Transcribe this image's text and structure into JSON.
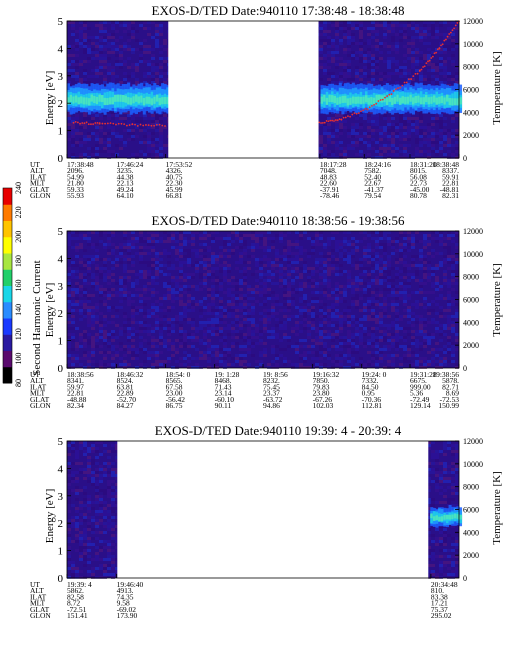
{
  "chart_data": [
    {
      "type": "heatmap",
      "title": "EXOS-D/TED   Date:940110  17:38:48 - 18:38:48",
      "ylabel": "Energy [eV]",
      "y2label": "Temperature [K]",
      "ylim": [
        0,
        5
      ],
      "y2lim": [
        0,
        12000
      ],
      "yticks": [
        "0",
        "1",
        "2",
        "3",
        "4",
        "5"
      ],
      "y2ticks": [
        "0",
        "2000",
        "4000",
        "6000",
        "8000",
        "10000",
        "12000"
      ],
      "xlim": [
        0,
        60
      ],
      "gaps": [
        [
          15.5,
          38.5
        ]
      ],
      "band": {
        "center_eV": 2.1,
        "spread_eV": 0.45
      },
      "temperature_trace": [
        [
          1,
          3100
        ],
        [
          5,
          3000
        ],
        [
          10,
          2900
        ],
        [
          15,
          2850
        ],
        [
          38.6,
          3100
        ],
        [
          42,
          3400
        ],
        [
          46,
          4300
        ],
        [
          50,
          5800
        ],
        [
          54,
          7600
        ],
        [
          57,
          9600
        ],
        [
          60,
          12000
        ]
      ],
      "eph_labels": [
        "UT",
        "ALT",
        "ILAT",
        "MLT",
        "GLAT",
        "GLON"
      ],
      "eph_columns": [
        {
          "t": 0,
          "values": [
            "17:38:48",
            "2096.",
            "54.99",
            "21.80",
            "59.33",
            "55.93"
          ]
        },
        {
          "t": 7.6,
          "values": [
            "17:46:24",
            "3235.",
            "44.38",
            "22.13",
            "49.24",
            "64.10"
          ]
        },
        {
          "t": 15.1,
          "values": [
            "17:53:52",
            "4326.",
            "40.75",
            "22.30",
            "45.99",
            "66.81"
          ]
        },
        {
          "t": 38.7,
          "values": [
            "18:17:28",
            "7048.",
            "48.83",
            "22.60",
            "-37.91",
            "-78.46"
          ]
        },
        {
          "t": 45.5,
          "values": [
            "18:24:16",
            "7582.",
            "52.40",
            "22.67",
            "-41.37",
            "79.54"
          ]
        },
        {
          "t": 52.5,
          "values": [
            "18:31:20",
            "8015.",
            "56.08",
            "22.73",
            "-45.00",
            "80.78"
          ]
        },
        {
          "t": 60,
          "values": [
            "18:38:48",
            "8337.",
            "59.91",
            "22.81",
            "-48.81",
            "82.31"
          ]
        }
      ]
    },
    {
      "type": "heatmap",
      "title": "EXOS-D/TED   Date:940110  18:38:56 - 19:38:56",
      "ylabel": "Energy [eV]",
      "y2label": "Temperature [K]",
      "ylim": [
        0,
        5
      ],
      "y2lim": [
        0,
        12000
      ],
      "yticks": [
        "0",
        "1",
        "2",
        "3",
        "4",
        "5"
      ],
      "y2ticks": [
        "0",
        "2000",
        "4000",
        "6000",
        "8000",
        "10000",
        "12000"
      ],
      "xlim": [
        0,
        60
      ],
      "gaps": [],
      "band": null,
      "temperature_trace": [],
      "eph_labels": [
        "UT",
        "ALT",
        "ILAT",
        "MLT",
        "GLAT",
        "GLON"
      ],
      "eph_columns": [
        {
          "t": 0,
          "values": [
            "18:38:56",
            "8341.",
            "59.97",
            "22.81",
            "-48.88",
            "82.34"
          ]
        },
        {
          "t": 7.6,
          "values": [
            "18:46:32",
            "8524.",
            "63.81",
            "22.89",
            "-52.70",
            "84.27"
          ]
        },
        {
          "t": 15.1,
          "values": [
            "18:54: 0",
            "8565.",
            "67.58",
            "23.00",
            "-56.42",
            "86.75"
          ]
        },
        {
          "t": 22.6,
          "values": [
            "19: 1:28",
            "8468.",
            "71.43",
            "23.14",
            "-60.10",
            "90.11"
          ]
        },
        {
          "t": 30.0,
          "values": [
            "19: 8:56",
            "8232.",
            "75.45",
            "23.37",
            "-63.72",
            "94.86"
          ]
        },
        {
          "t": 37.6,
          "values": [
            "19:16:32",
            "7850.",
            "79.83",
            "23.80",
            "-67.26",
            "102.03"
          ]
        },
        {
          "t": 45.1,
          "values": [
            "19:24: 0",
            "7332.",
            "84.50",
            "0.95",
            "-70.36",
            "112.81"
          ]
        },
        {
          "t": 52.5,
          "values": [
            "19:31:28",
            "6675.",
            "999.00",
            "5.36",
            "-72.49",
            "129.14"
          ]
        },
        {
          "t": 60,
          "values": [
            "19:38:56",
            "5878.",
            "82.71",
            "8.69",
            "-72.53",
            "150.99"
          ]
        }
      ]
    },
    {
      "type": "heatmap",
      "title": "EXOS-D/TED   Date:940110  19:39: 4 - 20:39: 4",
      "ylabel": "Energy [eV]",
      "y2label": "Temperature [K]",
      "ylim": [
        0,
        5
      ],
      "y2lim": [
        0,
        12000
      ],
      "yticks": [
        "0",
        "1",
        "2",
        "3",
        "4",
        "5"
      ],
      "y2ticks": [
        "0",
        "2000",
        "4000",
        "6000",
        "8000",
        "10000",
        "12000"
      ],
      "xlim": [
        0,
        60
      ],
      "gaps": [
        [
          7.7,
          55.3
        ]
      ],
      "band": {
        "center_eV": 2.2,
        "spread_eV": 0.3,
        "from_t": 55.6
      },
      "temperature_trace": [],
      "eph_labels": [
        "UT",
        "ALT",
        "ILAT",
        "MLT",
        "GLAT",
        "GLON"
      ],
      "eph_columns": [
        {
          "t": 0,
          "values": [
            "19:39: 4",
            "5862.",
            "82.58",
            "8.72",
            "-72.51",
            "151.41"
          ]
        },
        {
          "t": 7.6,
          "values": [
            "19:46:40",
            "4913.",
            "74.35",
            "9.58",
            "-69.02",
            "173.90"
          ]
        },
        {
          "t": 55.7,
          "values": [
            "20:34:48",
            "810.",
            "83.38",
            "17.21",
            "75.37",
            "295.02"
          ]
        }
      ]
    }
  ],
  "colorbar": {
    "label": "Second Harmonic Current",
    "ticks": [
      "80",
      "100",
      "120",
      "140",
      "160",
      "180",
      "200",
      "220",
      "240"
    ],
    "colors": [
      "#000000",
      "#5a0a6e",
      "#2a1aa0",
      "#1a3aff",
      "#2a8cff",
      "#19d6e8",
      "#22cf6a",
      "#a8e640",
      "#ffff00",
      "#ffc400",
      "#ff7a00",
      "#e80000"
    ]
  }
}
